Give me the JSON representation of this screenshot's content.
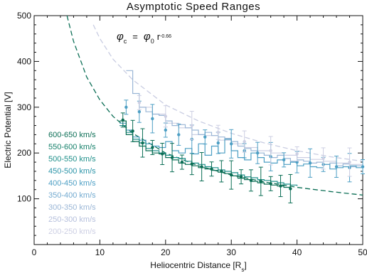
{
  "chart_data": {
    "type": "line",
    "title": "Asymptotic Speed Ranges",
    "xlabel": "Heliocentric Distance [R",
    "xlabel_sub": "s",
    "xlabel_end": "]",
    "ylabel": "Electric Potential [V]",
    "xlim": [
      0,
      50
    ],
    "ylim": [
      0,
      500
    ],
    "xticks": [
      "0",
      "10",
      "20",
      "30",
      "40",
      "50"
    ],
    "yticks": [
      "100",
      "200",
      "300",
      "400",
      "500"
    ],
    "grid": false,
    "legend_position": "left",
    "annotation": {
      "phi": "φ",
      "sub_c": "c",
      "eq": "=",
      "sub_0": "0",
      "r": "r",
      "exponent": "-0.66"
    },
    "fit_curves": [
      {
        "color": "#0b6e55",
        "points": [
          [
            5,
            500
          ],
          [
            6,
            444
          ],
          [
            8,
            366
          ],
          [
            10,
            316
          ],
          [
            12,
            280
          ],
          [
            15,
            243
          ],
          [
            20,
            200
          ],
          [
            25,
            172
          ],
          [
            30,
            152
          ],
          [
            35,
            137
          ],
          [
            40,
            125
          ],
          [
            45,
            116
          ],
          [
            50,
            108
          ]
        ]
      },
      {
        "color": "#c9cde2",
        "points": [
          [
            9,
            480
          ],
          [
            10,
            450
          ],
          [
            12,
            405
          ],
          [
            15,
            360
          ],
          [
            20,
            305
          ],
          [
            25,
            270
          ],
          [
            30,
            243
          ],
          [
            35,
            222
          ],
          [
            40,
            205
          ],
          [
            45,
            192
          ],
          [
            50,
            182
          ]
        ]
      }
    ],
    "series": [
      {
        "name": "600-650 km/s",
        "color": "#0b6e55"
      },
      {
        "name": "550-600 km/s",
        "color": "#15806a"
      },
      {
        "name": "500-550 km/s",
        "color": "#1e8f8a"
      },
      {
        "name": "450-500 km/s",
        "color": "#2b94a8"
      },
      {
        "name": "400-450 km/s",
        "color": "#4d9fc4"
      },
      {
        "name": "350-400 km/s",
        "color": "#72aad0"
      },
      {
        "name": "300-350 km/s",
        "color": "#9ab6d6"
      },
      {
        "name": "250-300 km/s",
        "color": "#b5bfdc"
      },
      {
        "name": "200-250 km/s",
        "color": "#cdcfe3"
      }
    ],
    "step_series": [
      {
        "color": "#cdcfe3",
        "x": [
          16,
          18,
          20,
          22,
          24,
          26,
          28,
          30,
          32,
          34,
          36,
          38,
          40,
          42,
          44,
          46,
          48,
          50
        ],
        "y": [
          300,
          285,
          265,
          255,
          240,
          238,
          228,
          220,
          212,
          205,
          200,
          195,
          190,
          186,
          182,
          178,
          175,
          172
        ]
      },
      {
        "color": "#9ab6d6",
        "x": [
          14,
          15,
          16,
          17,
          18,
          19,
          20,
          21,
          22,
          23,
          24,
          25,
          26,
          27,
          28,
          29,
          30,
          31,
          32,
          33,
          34,
          35,
          36,
          37,
          38,
          39,
          40,
          41,
          42,
          43,
          44,
          45,
          46,
          47,
          48,
          49,
          50
        ],
        "y": [
          380,
          330,
          300,
          290,
          285,
          282,
          270,
          260,
          262,
          255,
          250,
          240,
          245,
          238,
          235,
          232,
          225,
          215,
          210,
          205,
          200,
          195,
          190,
          195,
          188,
          182,
          185,
          182,
          178,
          180,
          175,
          178,
          172,
          176,
          170,
          172,
          170
        ]
      },
      {
        "color": "#4d9fc4",
        "x": [
          13,
          14,
          15,
          16,
          17,
          18,
          19,
          20,
          21,
          22,
          23,
          24,
          25,
          26,
          27,
          28,
          29,
          30,
          31,
          32,
          33,
          34,
          35,
          36,
          37,
          38,
          39,
          40,
          41,
          42,
          43,
          44,
          45,
          46,
          47,
          48,
          49,
          50
        ],
        "y": [
          265,
          250,
          235,
          228,
          220,
          215,
          212,
          225,
          205,
          200,
          210,
          198,
          220,
          195,
          215,
          200,
          230,
          205,
          190,
          185,
          200,
          190,
          180,
          178,
          185,
          175,
          180,
          172,
          176,
          170,
          168,
          175,
          165,
          168,
          170,
          172,
          168,
          170
        ]
      },
      {
        "color": "#1e8f8a",
        "x": [
          13,
          14,
          15,
          16,
          17,
          18,
          19,
          20,
          21,
          22,
          23,
          24,
          25,
          26,
          27,
          28,
          29,
          30,
          31,
          32,
          33,
          34,
          35,
          36,
          37,
          38,
          39,
          40
        ],
        "y": [
          260,
          245,
          230,
          222,
          210,
          205,
          200,
          195,
          190,
          188,
          182,
          178,
          175,
          170,
          168,
          163,
          160,
          157,
          152,
          148,
          146,
          142,
          140,
          138,
          135,
          132,
          130,
          128
        ]
      },
      {
        "color": "#0b6e55",
        "x": [
          13,
          14,
          15,
          16,
          17,
          18,
          19,
          20,
          21,
          22,
          23,
          24,
          25,
          26,
          27,
          28,
          29,
          30,
          31,
          32,
          33,
          34,
          35,
          36,
          37,
          38,
          39
        ],
        "y": [
          270,
          240,
          225,
          215,
          205,
          200,
          198,
          190,
          185,
          178,
          175,
          172,
          168,
          165,
          162,
          158,
          155,
          150,
          145,
          142,
          138,
          135,
          132,
          130,
          128,
          125,
          122
        ]
      }
    ],
    "point_series": [
      {
        "color": "#0b6e55",
        "x": [
          13.5,
          15,
          16.5,
          18,
          19.5,
          21,
          22.5,
          24,
          25.5,
          27,
          28.5,
          30,
          31.5,
          33,
          34.5,
          36,
          37.5,
          39
        ],
        "y": [
          272,
          248,
          222,
          212,
          198,
          190,
          180,
          176,
          170,
          165,
          160,
          152,
          148,
          140,
          138,
          133,
          128,
          122
        ]
      },
      {
        "color": "#4d9fc4",
        "x": [
          14,
          16,
          18,
          20,
          22,
          24,
          26,
          28,
          30,
          32,
          34,
          36,
          38,
          40,
          42,
          44,
          46,
          48,
          50
        ],
        "y": [
          300,
          290,
          275,
          250,
          240,
          230,
          235,
          222,
          220,
          205,
          200,
          192,
          185,
          180,
          178,
          175,
          170,
          168,
          170
        ]
      },
      {
        "color": "#cdcfe3",
        "x": [
          16,
          20,
          24,
          28,
          32,
          36,
          40,
          44,
          48
        ],
        "y": [
          310,
          280,
          260,
          245,
          225,
          205,
          198,
          188,
          180
        ]
      }
    ]
  }
}
